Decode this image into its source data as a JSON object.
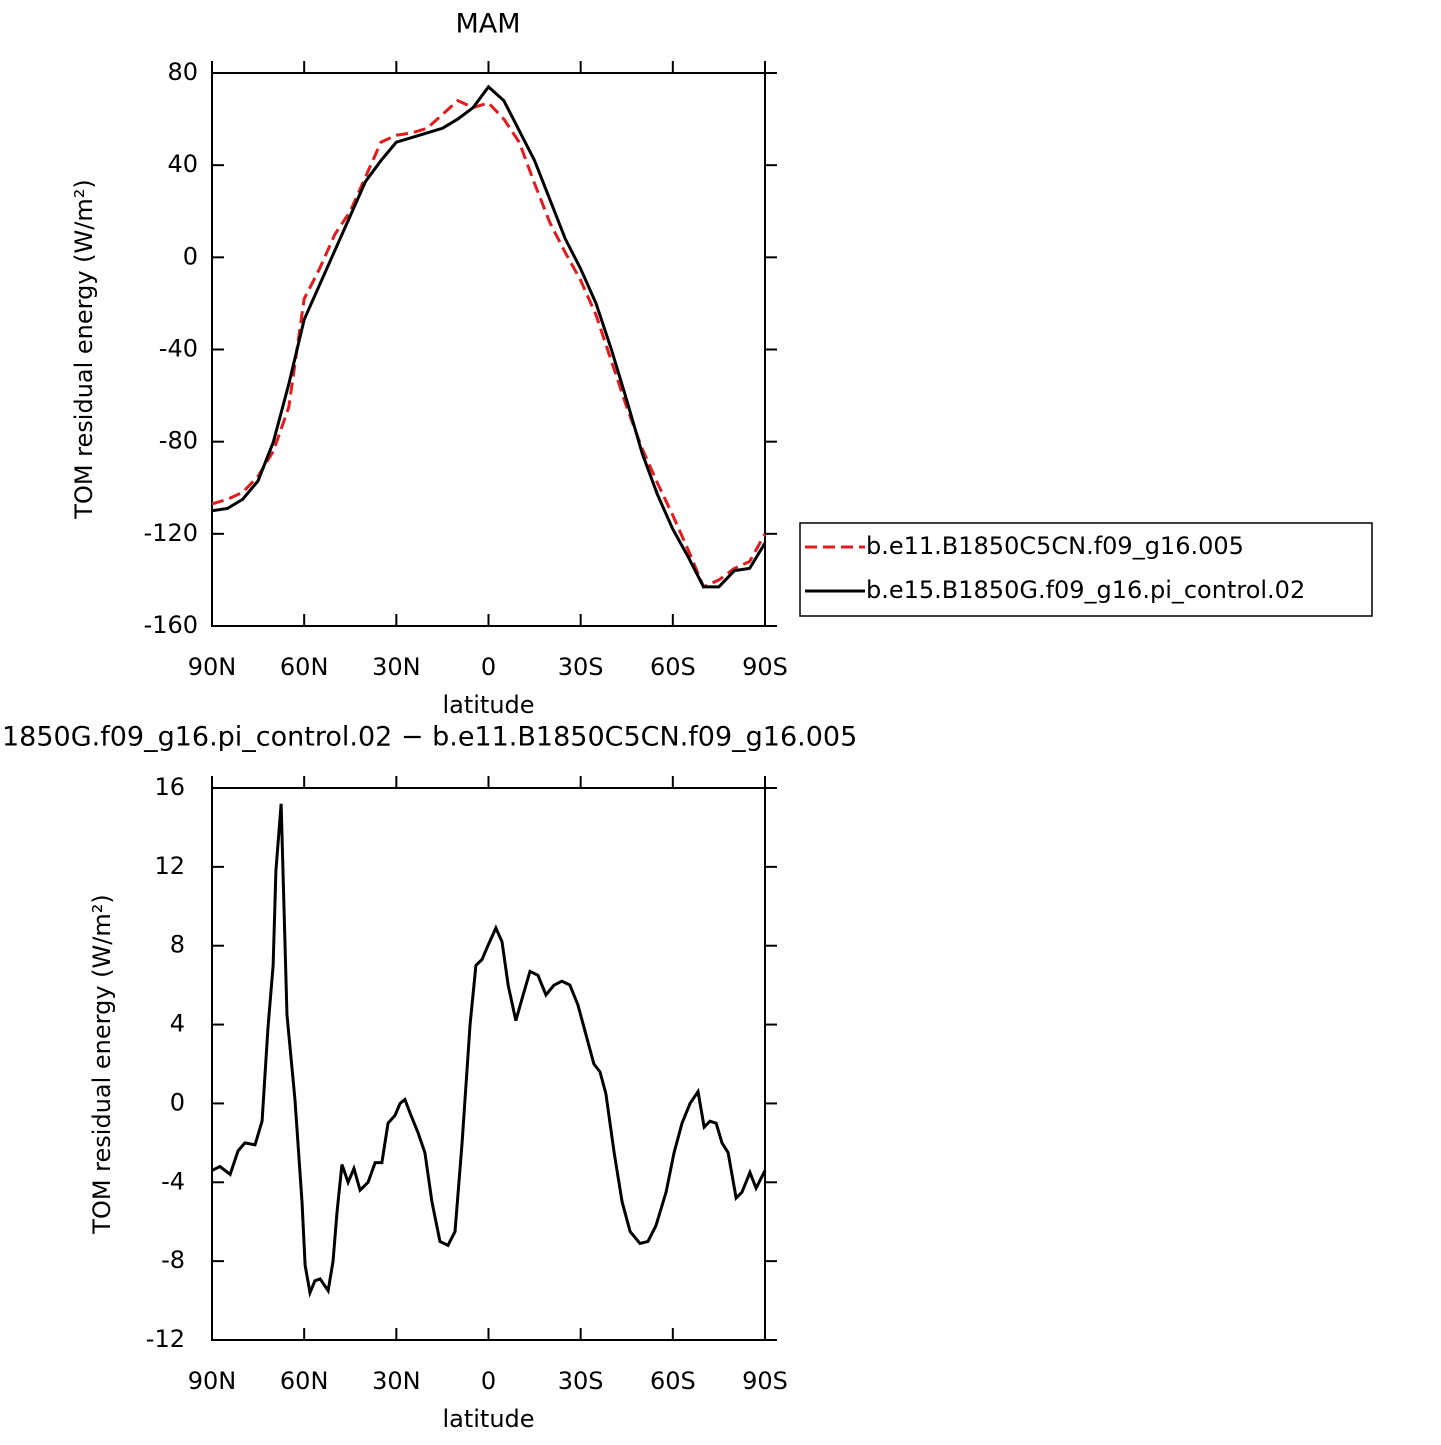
{
  "chart_data": [
    {
      "type": "line",
      "title": "MAM",
      "xlabel": "latitude",
      "ylabel": "TOM residual energy (W/m²)",
      "x": [
        90,
        85,
        80,
        75,
        70,
        65,
        60,
        55,
        50,
        45,
        40,
        35,
        30,
        25,
        20,
        15,
        10,
        5,
        0,
        -5,
        -10,
        -15,
        -20,
        -25,
        -30,
        -35,
        -40,
        -45,
        -50,
        -55,
        -60,
        -65,
        -70,
        -75,
        -80,
        -85,
        -90
      ],
      "series": [
        {
          "name": "b.e11.B1850C5CN.f09_g16.005",
          "color": "#e41a1c",
          "dash": true,
          "values": [
            -107,
            -105,
            -102,
            -95,
            -84,
            -65,
            -18,
            -5,
            10,
            20,
            35,
            50,
            53,
            54,
            56,
            62,
            68,
            65,
            67,
            60,
            50,
            32,
            15,
            2,
            -10,
            -25,
            -45,
            -65,
            -83,
            -98,
            -112,
            -127,
            -143,
            -140,
            -135,
            -132,
            -120
          ]
        },
        {
          "name": "b.e15.B1850G.f09_g16.pi_control.02",
          "color": "#000000",
          "dash": false,
          "values": [
            -110,
            -109,
            -105,
            -97,
            -80,
            -55,
            -27,
            -12,
            3,
            18,
            33,
            42,
            50,
            52,
            54,
            56,
            60,
            65,
            74,
            68,
            55,
            42,
            25,
            8,
            -5,
            -20,
            -40,
            -62,
            -85,
            -103,
            -118,
            -130,
            -143,
            -143,
            -136,
            -135,
            -124
          ]
        }
      ],
      "xlim": [
        90,
        -90
      ],
      "xticks": [
        {
          "value": 90,
          "label": "90N"
        },
        {
          "value": 60,
          "label": "60N"
        },
        {
          "value": 30,
          "label": "30N"
        },
        0,
        {
          "value": -30,
          "label": "30S"
        },
        {
          "value": -60,
          "label": "60S"
        },
        {
          "value": -90,
          "label": "90S"
        }
      ],
      "ylim": [
        -160,
        80
      ],
      "yticks": [
        -160,
        -120,
        -80,
        -40,
        0,
        40,
        80
      ],
      "legend": "right"
    },
    {
      "type": "line",
      "title": "1850G.f09_g16.pi_control.02 − b.e11.B1850C5CN.f09_g16.005",
      "xlabel": "latitude",
      "ylabel": "TOM residual energy (W/m²)",
      "x": [
        90,
        87.4,
        84.1,
        81.5,
        79.3,
        76,
        73.7,
        71.8,
        70.1,
        69.2,
        67.5,
        65.6,
        63,
        60.7,
        59.7,
        58.1,
        56.5,
        54.8,
        52.2,
        50.6,
        49.3,
        47.7,
        45.7,
        43.8,
        41.8,
        39.2,
        36.9,
        34.7,
        32.7,
        30.4,
        28.8,
        27.2,
        25.5,
        22.9,
        20.7,
        18.4,
        15.8,
        13.2,
        10.9,
        8.6,
        6,
        4.1,
        2.1,
        0.2,
        -2.4,
        -4.4,
        -6.4,
        -8.9,
        -10.9,
        -13.5,
        -16.1,
        -18.7,
        -21.3,
        -23.9,
        -26.5,
        -29.1,
        -31.7,
        -34.3,
        -36.3,
        -38.2,
        -40.9,
        -43.5,
        -46.1,
        -49.3,
        -51.9,
        -54.5,
        -57.8,
        -60.4,
        -63,
        -65.6,
        -68.2,
        -70.2,
        -72.1,
        -74.1,
        -76,
        -78,
        -80.6,
        -82.5,
        -85.1,
        -87.1,
        -90
      ],
      "series": [
        {
          "color": "#000000",
          "dash": false,
          "values": [
            -3.4,
            -3.2,
            -3.6,
            -2.4,
            -2,
            -2.1,
            -0.9,
            3.8,
            7,
            11.8,
            15.2,
            4.5,
            0.2,
            -5,
            -8.2,
            -9.6,
            -9,
            -8.9,
            -9.5,
            -8,
            -5.5,
            -3.1,
            -4,
            -3.3,
            -4.4,
            -4,
            -3,
            -3,
            -1,
            -0.6,
            0,
            0.2,
            -0.5,
            -1.5,
            -2.5,
            -5,
            -7,
            -7.2,
            -6.5,
            -2,
            4,
            7,
            7.3,
            8,
            8.9,
            8.2,
            6,
            4.2,
            5.3,
            6.7,
            6.5,
            5.5,
            6,
            6.2,
            6,
            5,
            3.5,
            2,
            1.6,
            0.5,
            -2.5,
            -5,
            -6.5,
            -7.1,
            -7,
            -6.2,
            -4.5,
            -2.5,
            -1,
            0,
            0.6,
            -1.2,
            -0.9,
            -1,
            -2,
            -2.5,
            -4.8,
            -4.5,
            -3.5,
            -4.3,
            -3.4
          ]
        }
      ],
      "xlim": [
        90,
        -90
      ],
      "xticks": [
        {
          "value": 90,
          "label": "90N"
        },
        {
          "value": 60,
          "label": "60N"
        },
        {
          "value": 30,
          "label": "30N"
        },
        0,
        {
          "value": -30,
          "label": "30S"
        },
        {
          "value": -60,
          "label": "60S"
        },
        {
          "value": -90,
          "label": "90S"
        }
      ],
      "ylim": [
        -12,
        16
      ],
      "yticks": [
        -12,
        -8,
        -4,
        0,
        4,
        8,
        12,
        16
      ]
    }
  ]
}
